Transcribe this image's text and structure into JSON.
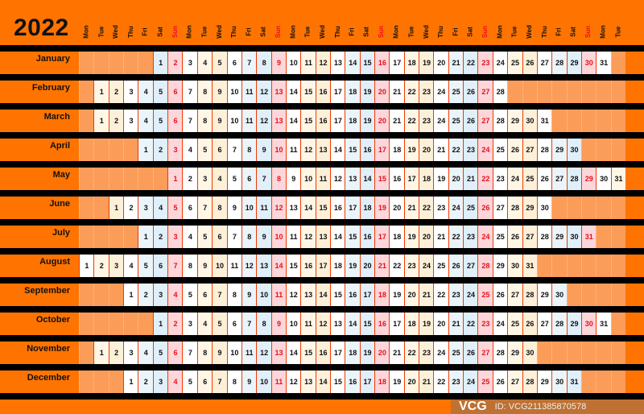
{
  "year": "2022",
  "weekday_headers": [
    "Mon",
    "Tue",
    "Wed",
    "Thu",
    "Fri",
    "Sat",
    "Sun",
    "Mon",
    "Tue",
    "Wed",
    "Thu",
    "Fri",
    "Sat",
    "Sun",
    "Mon",
    "Tue",
    "Wed",
    "Thu",
    "Fri",
    "Sat",
    "Sun",
    "Mon",
    "Tue",
    "Wed",
    "Thu",
    "Fri",
    "Sat",
    "Sun",
    "Mon",
    "Tue",
    "Wed",
    "Thu",
    "Fri",
    "Sat",
    "Sun",
    "Mon",
    "Tue"
  ],
  "months": [
    {
      "name": "January",
      "first_weekday": "Sat",
      "days": 31
    },
    {
      "name": "February",
      "first_weekday": "Tue",
      "days": 28
    },
    {
      "name": "March",
      "first_weekday": "Tue",
      "days": 31
    },
    {
      "name": "April",
      "first_weekday": "Fri",
      "days": 30
    },
    {
      "name": "May",
      "first_weekday": "Sun",
      "days": 31
    },
    {
      "name": "June",
      "first_weekday": "Wed",
      "days": 30
    },
    {
      "name": "July",
      "first_weekday": "Fri",
      "days": 31
    },
    {
      "name": "August",
      "first_weekday": "Mon",
      "days": 31
    },
    {
      "name": "September",
      "first_weekday": "Thu",
      "days": 30
    },
    {
      "name": "October",
      "first_weekday": "Sat",
      "days": 31
    },
    {
      "name": "November",
      "first_weekday": "Tue",
      "days": 30
    },
    {
      "name": "December",
      "first_weekday": "Thu",
      "days": 31
    }
  ],
  "colors": {
    "background": "#ff7400",
    "sunday_text": "#e8101a",
    "cell_by_weekday": {
      "Mon": "#ffffff",
      "Tue": "#fff6e6",
      "Wed": "#fdf0d8",
      "Thu": "#ffffff",
      "Fri": "#eaf4fb",
      "Sat": "#e0effa",
      "Sun": "#fcd6da"
    }
  },
  "watermark": {
    "logo": "VCG",
    "id": "ID: VCG211385870578"
  }
}
